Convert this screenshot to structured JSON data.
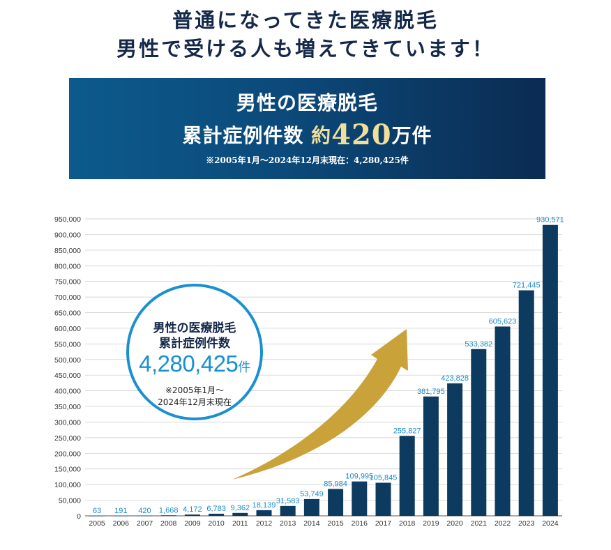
{
  "headline": {
    "line1": "普通になってきた医療脱毛",
    "line2": "男性で受ける人も増えてきています！"
  },
  "banner": {
    "line1": "男性の医療脱毛",
    "line2_prefix": "累計症例件数",
    "line2_approx": "約",
    "line2_number": "420",
    "line2_unit": "万件",
    "note": "※2005年1月～2024年12月末現在：4,280,425件"
  },
  "callout": {
    "line1": "男性の医療脱毛",
    "line2": "累計症例件数",
    "number": "4,280,425",
    "unit": "件",
    "note1": "※2005年1月～",
    "note2": "2024年12月末現在"
  },
  "colors": {
    "bar": "#0d3a5f",
    "data_label": "#1d8ac7",
    "arrow": "#c9a23a",
    "gridline": "#c8c8c8",
    "banner_gold": "#f0de9a"
  },
  "chart_data": {
    "type": "bar",
    "categories": [
      "2005",
      "2006",
      "2007",
      "2008",
      "2009",
      "2010",
      "2011",
      "2012",
      "2013",
      "2014",
      "2015",
      "2016",
      "2017",
      "2018",
      "2019",
      "2020",
      "2021",
      "2022",
      "2023",
      "2024"
    ],
    "values": [
      63,
      191,
      420,
      1668,
      4172,
      6783,
      9362,
      18139,
      31583,
      53749,
      85984,
      109995,
      105845,
      255827,
      381795,
      423828,
      533382,
      605623,
      721445,
      930571
    ],
    "data_labels": [
      "63",
      "191",
      "420",
      "1,668",
      "4,172",
      "6,783",
      "9,362",
      "18,139",
      "31,583",
      "53,749",
      "85,984",
      "109,995",
      "105,845",
      "255,827",
      "381,795",
      "423,828",
      "533,382",
      "605,623",
      "721,445",
      "930,571"
    ],
    "ylim": [
      0,
      950000
    ],
    "y_ticks": [
      "0",
      "50,000",
      "100,000",
      "150,000",
      "200,000",
      "250,000",
      "300,000",
      "350,000",
      "400,000",
      "450,000",
      "500,000",
      "550,000",
      "600,000",
      "650,000",
      "700,000",
      "750,000",
      "800,000",
      "850,000",
      "900,000",
      "950,000"
    ],
    "y_tick_values": [
      0,
      50000,
      100000,
      150000,
      200000,
      250000,
      300000,
      350000,
      400000,
      450000,
      500000,
      550000,
      600000,
      650000,
      700000,
      750000,
      800000,
      850000,
      900000,
      950000
    ],
    "grid": true,
    "xlabel": "",
    "ylabel": "",
    "annotation": "upward-arrow"
  }
}
